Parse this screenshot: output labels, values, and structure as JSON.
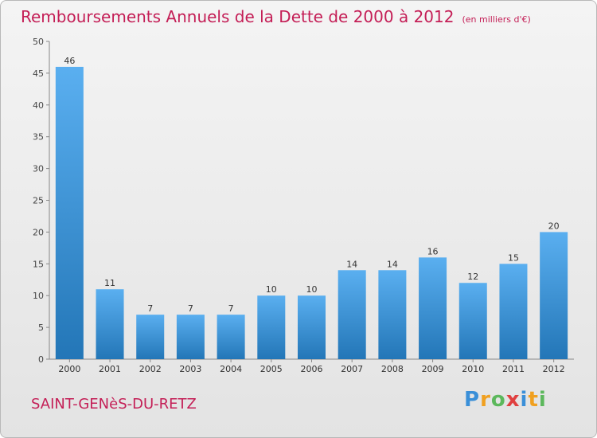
{
  "header": {
    "title": "Remboursements Annuels de la Dette de 2000 à 2012",
    "unit": "(en milliers d'€)"
  },
  "footer": {
    "commune": "SAINT-GENèS-DU-RETZ",
    "logo": "Proxiti"
  },
  "colors": {
    "title": "#c41e56",
    "bar_light": "#5aaff0",
    "bar_dark": "#2376b7"
  },
  "chart_data": {
    "type": "bar",
    "categories": [
      "2000",
      "2001",
      "2002",
      "2003",
      "2004",
      "2005",
      "2006",
      "2007",
      "2008",
      "2009",
      "2010",
      "2011",
      "2012"
    ],
    "values": [
      46,
      11,
      7,
      7,
      7,
      10,
      10,
      14,
      14,
      16,
      12,
      15,
      20
    ],
    "ylim": [
      0,
      50
    ],
    "yticks": [
      0,
      5,
      10,
      15,
      20,
      25,
      30,
      35,
      40,
      45,
      50
    ],
    "xlabel": "",
    "ylabel": "",
    "grid": false,
    "legend": "none",
    "data_labels": true
  }
}
